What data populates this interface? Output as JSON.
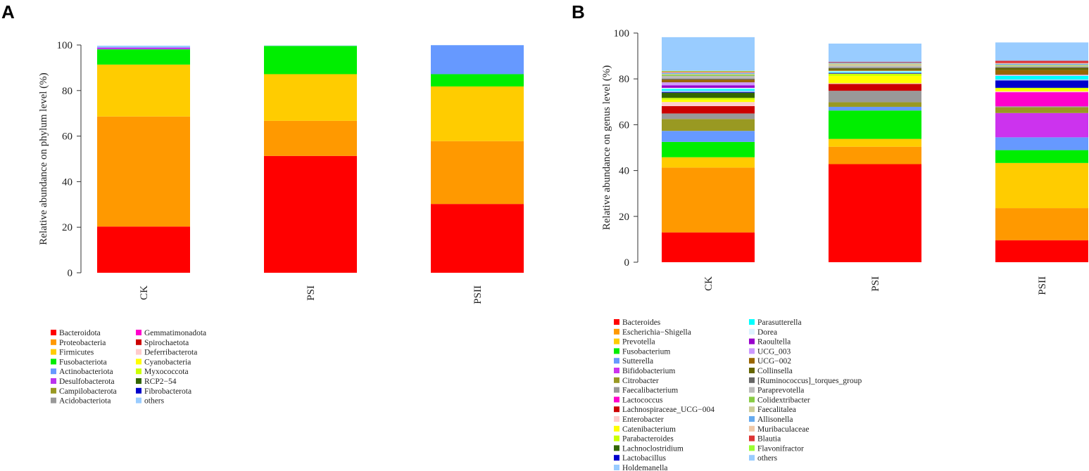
{
  "panels": [
    {
      "letter": "A",
      "chart_data": {
        "type": "bar",
        "stacked": true,
        "title": "",
        "xlabel": "",
        "ylabel": "Relative abundance on phylum level (%)",
        "ylim": [
          0,
          100
        ],
        "yticks": [
          0,
          20,
          40,
          60,
          80,
          100
        ],
        "categories": [
          "CK",
          "PSI",
          "PSII"
        ],
        "series": [
          {
            "name": "Bacteroidota",
            "color": "#ff0000",
            "values": [
              20.3,
              51.3,
              30.2
            ]
          },
          {
            "name": "Proteobacteria",
            "color": "#ff9900",
            "values": [
              48.3,
              15.4,
              27.6
            ]
          },
          {
            "name": "Firmicutes",
            "color": "#ffcc00",
            "values": [
              22.8,
              20.5,
              24.0
            ]
          },
          {
            "name": "Fusobacteriota",
            "color": "#00ee00",
            "values": [
              6.7,
              12.4,
              5.4
            ]
          },
          {
            "name": "Actinobacteriota",
            "color": "#6699ff",
            "values": [
              0.0,
              0.0,
              12.7
            ]
          },
          {
            "name": "Desulfobacterota",
            "color": "#bb33ee",
            "values": [
              0.8,
              0.0,
              0.0
            ]
          },
          {
            "name": "Campilobacterota",
            "color": "#999922",
            "values": [
              0.0,
              0.0,
              0.0
            ]
          },
          {
            "name": "Acidobacteriota",
            "color": "#999999",
            "values": [
              0.0,
              0.0,
              0.0
            ]
          },
          {
            "name": "Gemmatimonadota",
            "color": "#ff00cc",
            "values": [
              0.0,
              0.0,
              0.0
            ]
          },
          {
            "name": "Spirochaetota",
            "color": "#cc0000",
            "values": [
              0.0,
              0.0,
              0.0
            ]
          },
          {
            "name": "Deferribacterota",
            "color": "#ffcccc",
            "values": [
              0.0,
              0.0,
              0.0
            ]
          },
          {
            "name": "Cyanobacteria",
            "color": "#ffff00",
            "values": [
              0.0,
              0.0,
              0.0
            ]
          },
          {
            "name": "Myxococcota",
            "color": "#ccff00",
            "values": [
              0.0,
              0.0,
              0.0
            ]
          },
          {
            "name": "RCP2−54",
            "color": "#336600",
            "values": [
              0.0,
              0.0,
              0.0
            ]
          },
          {
            "name": "Fibrobacterota",
            "color": "#0000cc",
            "values": [
              0.0,
              0.0,
              0.0
            ]
          },
          {
            "name": "others",
            "color": "#99ccff",
            "values": [
              0.8,
              0.2,
              0.1
            ]
          }
        ],
        "legend": [
          [
            "Bacteroidota",
            "Proteobacteria",
            "Firmicutes",
            "Fusobacteriota",
            "Actinobacteriota",
            "Desulfobacterota",
            "Campilobacterota",
            "Acidobacteriota"
          ],
          [
            "Gemmatimonadota",
            "Spirochaetota",
            "Deferribacterota",
            "Cyanobacteria",
            "Myxococcota",
            "RCP2−54",
            "Fibrobacterota",
            "others"
          ]
        ]
      }
    },
    {
      "letter": "B",
      "chart_data": {
        "type": "bar",
        "stacked": true,
        "title": "",
        "xlabel": "",
        "ylabel": "Relative abundance on genus level (%)",
        "ylim": [
          0,
          100
        ],
        "yticks": [
          0,
          20,
          40,
          60,
          80,
          100
        ],
        "categories": [
          "CK",
          "PSI",
          "PSII"
        ],
        "series": [
          {
            "name": "Bacteroides",
            "color": "#ff0000",
            "values": [
              13.0,
              42.8,
              9.6
            ]
          },
          {
            "name": "Escherichia−Shigella",
            "color": "#ff9900",
            "values": [
              28.3,
              7.6,
              14.0
            ]
          },
          {
            "name": "Prevotella",
            "color": "#ffcc00",
            "values": [
              4.5,
              3.4,
              19.7
            ]
          },
          {
            "name": "Fusobacterium",
            "color": "#00ee00",
            "values": [
              6.7,
              12.4,
              5.6
            ]
          },
          {
            "name": "Sutterella",
            "color": "#6699ff",
            "values": [
              4.8,
              1.6,
              5.6
            ]
          },
          {
            "name": "Bifidobacterium",
            "color": "#cc33ee",
            "values": [
              0.0,
              0.0,
              10.6
            ]
          },
          {
            "name": "Citrobacter",
            "color": "#999922",
            "values": [
              5.2,
              2.0,
              2.5
            ]
          },
          {
            "name": "Faecalibacterium",
            "color": "#999999",
            "values": [
              2.4,
              5.0,
              0.4
            ]
          },
          {
            "name": "Lactococcus",
            "color": "#ff00cc",
            "values": [
              0.0,
              0.0,
              6.2
            ]
          },
          {
            "name": "Lachnospiraceae_UCG−004",
            "color": "#cc0000",
            "values": [
              3.2,
              3.0,
              0.0
            ]
          },
          {
            "name": "Enterobacter",
            "color": "#ffcccc",
            "values": [
              1.8,
              0.3,
              0.4
            ]
          },
          {
            "name": "Catenibacterium",
            "color": "#ffff00",
            "values": [
              1.0,
              3.2,
              1.0
            ]
          },
          {
            "name": "Parabacteroides",
            "color": "#ccff00",
            "values": [
              0.8,
              1.0,
              0.5
            ]
          },
          {
            "name": "Lachnoclostridium",
            "color": "#336600",
            "values": [
              2.3,
              0.0,
              0.0
            ]
          },
          {
            "name": "Lactobacillus",
            "color": "#0000cc",
            "values": [
              0.3,
              0.3,
              3.2
            ]
          },
          {
            "name": "Holdemanella",
            "color": "#99ccff",
            "values": [
              0.6,
              0.3,
              0.5
            ]
          },
          {
            "name": "Parasutterella",
            "color": "#00ffff",
            "values": [
              0.7,
              0.3,
              1.5
            ]
          },
          {
            "name": "Dorea",
            "color": "#ddf2ff",
            "values": [
              0.5,
              0.3,
              0.2
            ]
          },
          {
            "name": "Raoultella",
            "color": "#9900cc",
            "values": [
              1.1,
              0.0,
              0.0
            ]
          },
          {
            "name": "UCG_003",
            "color": "#cc99ff",
            "values": [
              1.3,
              0.0,
              0.3
            ]
          },
          {
            "name": "UCG−002",
            "color": "#996600",
            "values": [
              1.2,
              0.3,
              2.0
            ]
          },
          {
            "name": "Collinsella",
            "color": "#666600",
            "values": [
              0.0,
              0.8,
              1.0
            ]
          },
          {
            "name": "[Ruminococcus]_torques_group",
            "color": "#666666",
            "values": [
              0.4,
              0.3,
              0.3
            ]
          },
          {
            "name": "Paraprevotella",
            "color": "#bbbbbb",
            "values": [
              1.2,
              0.7,
              0.4
            ]
          },
          {
            "name": "Colidextribacter",
            "color": "#88cc44",
            "values": [
              0.5,
              0.0,
              0.3
            ]
          },
          {
            "name": "Faecalitalea",
            "color": "#cccc99",
            "values": [
              0.4,
              1.2,
              0.4
            ]
          },
          {
            "name": "Allisonella",
            "color": "#66aaee",
            "values": [
              0.4,
              0.3,
              0.4
            ]
          },
          {
            "name": "Muribaculaceae",
            "color": "#f0c8a8",
            "values": [
              0.3,
              0.0,
              0.3
            ]
          },
          {
            "name": "Blautia",
            "color": "#dd3333",
            "values": [
              0.3,
              0.3,
              1.0
            ]
          },
          {
            "name": "Flavonifractor",
            "color": "#99ff33",
            "values": [
              0.3,
              0.0,
              0.0
            ]
          },
          {
            "name": "others",
            "color": "#99ccff",
            "values": [
              14.7,
              8.0,
              8.0
            ]
          }
        ],
        "legend": [
          [
            "Bacteroides",
            "Escherichia−Shigella",
            "Prevotella",
            "Fusobacterium",
            "Sutterella",
            "Bifidobacterium",
            "Citrobacter",
            "Faecalibacterium",
            "Lactococcus",
            "Lachnospiraceae_UCG−004",
            "Enterobacter",
            "Catenibacterium",
            "Parabacteroides",
            "Lachnoclostridium",
            "Lactobacillus",
            "Holdemanella"
          ],
          [
            "Parasutterella",
            "Dorea",
            "Raoultella",
            "UCG_003",
            "UCG−002",
            "Collinsella",
            "[Ruminococcus]_torques_group",
            "Paraprevotella",
            "Colidextribacter",
            "Faecalitalea",
            "Allisonella",
            "Muribaculaceae",
            "Blautia",
            "Flavonifractor",
            "others"
          ]
        ]
      }
    }
  ]
}
